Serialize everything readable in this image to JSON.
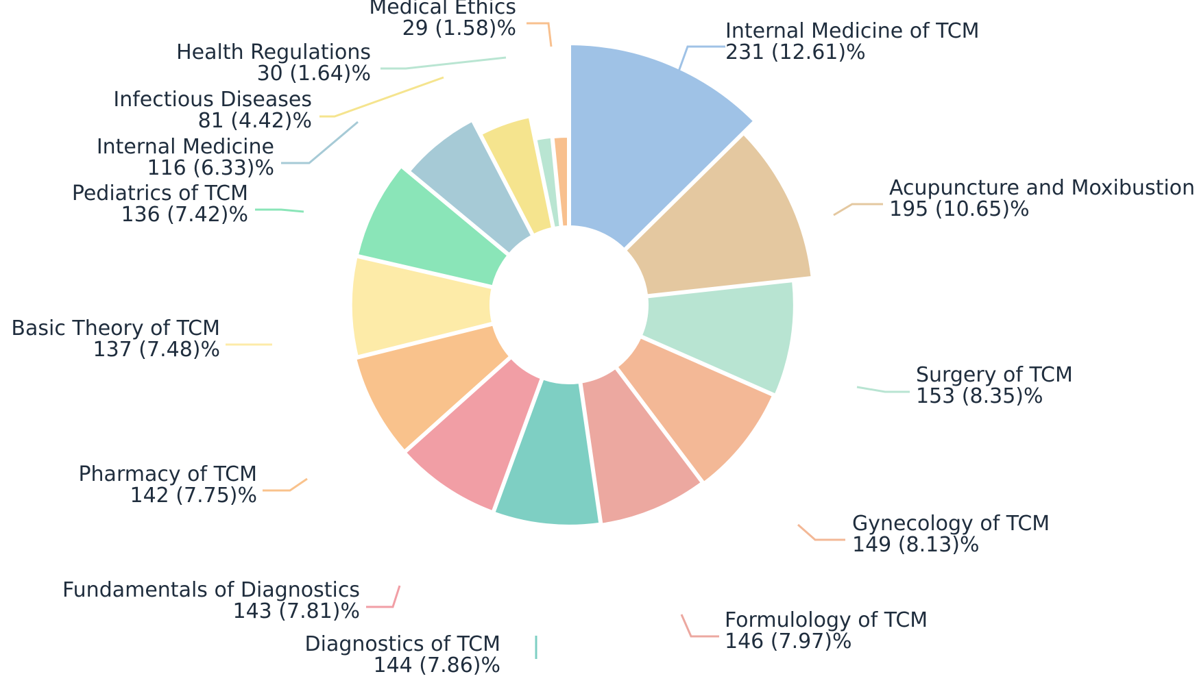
{
  "chart_data": {
    "type": "pie",
    "variant": "rose-donut",
    "title": "",
    "slices": [
      {
        "name": "Internal Medicine of TCM",
        "value": 231,
        "percent": "12.61",
        "color": "#9fc2e6"
      },
      {
        "name": "Acupuncture and Moxibustion",
        "value": 195,
        "percent": "10.65",
        "color": "#e4c8a0"
      },
      {
        "name": "Surgery of TCM",
        "value": 153,
        "percent": "8.35",
        "color": "#b8e4d2"
      },
      {
        "name": "Gynecology of TCM",
        "value": 149,
        "percent": "8.13",
        "color": "#f3b896"
      },
      {
        "name": "Formulology of TCM",
        "value": 146,
        "percent": "7.97",
        "color": "#eca8a0"
      },
      {
        "name": "Diagnostics of TCM",
        "value": 144,
        "percent": "7.86",
        "color": "#7ecfc3"
      },
      {
        "name": "Fundamentals of Diagnostics",
        "value": 143,
        "percent": "7.81",
        "color": "#f19ea5"
      },
      {
        "name": "Pharmacy of TCM",
        "value": 142,
        "percent": "7.75",
        "color": "#f9c28c"
      },
      {
        "name": "Basic Theory of TCM",
        "value": 137,
        "percent": "7.48",
        "color": "#fdeba8"
      },
      {
        "name": "Pediatrics of TCM",
        "value": 136,
        "percent": "7.42",
        "color": "#8ae5b8"
      },
      {
        "name": "Internal Medicine",
        "value": 116,
        "percent": "6.33",
        "color": "#a6cad6"
      },
      {
        "name": "Infectious Diseases",
        "value": 81,
        "percent": "4.42",
        "color": "#f5e48e"
      },
      {
        "name": "Health Regulations",
        "value": 30,
        "percent": "1.64",
        "color": "#b9e5d2"
      },
      {
        "name": "Medical Ethics",
        "value": 29,
        "percent": "1.58",
        "color": "#f8c08e"
      }
    ]
  }
}
